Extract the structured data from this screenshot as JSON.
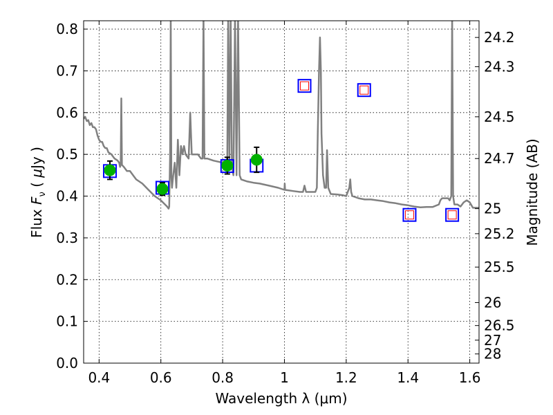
{
  "chart_data": {
    "type": "scatter",
    "xlabel": "Wavelength  λ (μm)",
    "ylabel": "Flux  F_ν  ( μJy )",
    "ylabel_right": "Magnitude (AB)",
    "xlim": [
      0.35,
      1.63
    ],
    "ylim": [
      0.0,
      0.82
    ],
    "grid": true,
    "x_ticks": [
      0.4,
      0.6,
      0.8,
      1.0,
      1.2,
      1.4,
      1.6
    ],
    "x_tick_labels": [
      "0.4",
      "0.6",
      "0.8",
      "1",
      "1.2",
      "1.4",
      "1.6"
    ],
    "y_ticks": [
      0.0,
      0.1,
      0.2,
      0.3,
      0.4,
      0.5,
      0.6,
      0.7,
      0.8
    ],
    "y_tick_labels": [
      "0.0",
      "0.1",
      "0.2",
      "0.3",
      "0.4",
      "0.5",
      "0.6",
      "0.7",
      "0.8"
    ],
    "mag_ticks": [
      {
        "label": "24.2",
        "flux": 0.78
      },
      {
        "label": "24.3",
        "flux": 0.71
      },
      {
        "label": "24.5",
        "flux": 0.59
      },
      {
        "label": "24.7",
        "flux": 0.49
      },
      {
        "label": "25",
        "flux": 0.37
      },
      {
        "label": "25.2",
        "flux": 0.31
      },
      {
        "label": "25.5",
        "flux": 0.23
      },
      {
        "label": "26",
        "flux": 0.145
      },
      {
        "label": "26.5",
        "flux": 0.09
      },
      {
        "label": "27",
        "flux": 0.055
      },
      {
        "label": "28",
        "flux": 0.022
      }
    ],
    "series": [
      {
        "kind": "model-spectrum",
        "color": "#808080",
        "points": [
          [
            0.35,
            0.585
          ],
          [
            0.355,
            0.59
          ],
          [
            0.36,
            0.58
          ],
          [
            0.365,
            0.582
          ],
          [
            0.37,
            0.57
          ],
          [
            0.375,
            0.575
          ],
          [
            0.38,
            0.565
          ],
          [
            0.385,
            0.565
          ],
          [
            0.39,
            0.56
          ],
          [
            0.395,
            0.545
          ],
          [
            0.4,
            0.535
          ],
          [
            0.405,
            0.53
          ],
          [
            0.41,
            0.53
          ],
          [
            0.415,
            0.52
          ],
          [
            0.42,
            0.515
          ],
          [
            0.425,
            0.515
          ],
          [
            0.43,
            0.505
          ],
          [
            0.44,
            0.5
          ],
          [
            0.45,
            0.49
          ],
          [
            0.46,
            0.485
          ],
          [
            0.465,
            0.48
          ],
          [
            0.468,
            0.47
          ],
          [
            0.47,
            0.475
          ],
          [
            0.472,
            0.634
          ],
          [
            0.474,
            0.475
          ],
          [
            0.48,
            0.47
          ],
          [
            0.49,
            0.46
          ],
          [
            0.5,
            0.46
          ],
          [
            0.51,
            0.45
          ],
          [
            0.52,
            0.44
          ],
          [
            0.54,
            0.43
          ],
          [
            0.56,
            0.415
          ],
          [
            0.58,
            0.4
          ],
          [
            0.6,
            0.39
          ],
          [
            0.62,
            0.375
          ],
          [
            0.625,
            0.37
          ],
          [
            0.627,
            0.375
          ],
          [
            0.63,
            0.5
          ],
          [
            0.632,
            0.83
          ],
          [
            0.634,
            0.45
          ],
          [
            0.636,
            0.42
          ],
          [
            0.64,
            0.45
          ],
          [
            0.645,
            0.48
          ],
          [
            0.65,
            0.42
          ],
          [
            0.655,
            0.535
          ],
          [
            0.66,
            0.45
          ],
          [
            0.665,
            0.52
          ],
          [
            0.67,
            0.5
          ],
          [
            0.675,
            0.52
          ],
          [
            0.68,
            0.5
          ],
          [
            0.69,
            0.49
          ],
          [
            0.695,
            0.6
          ],
          [
            0.7,
            0.5
          ],
          [
            0.71,
            0.5
          ],
          [
            0.72,
            0.5
          ],
          [
            0.73,
            0.49
          ],
          [
            0.735,
            0.49
          ],
          [
            0.738,
            0.83
          ],
          [
            0.741,
            0.49
          ],
          [
            0.75,
            0.49
          ],
          [
            0.77,
            0.485
          ],
          [
            0.8,
            0.48
          ],
          [
            0.81,
            0.48
          ],
          [
            0.815,
            0.49
          ],
          [
            0.818,
            0.83
          ],
          [
            0.822,
            0.49
          ],
          [
            0.826,
            0.83
          ],
          [
            0.83,
            0.47
          ],
          [
            0.835,
            0.45
          ],
          [
            0.84,
            0.83
          ],
          [
            0.845,
            0.45
          ],
          [
            0.85,
            0.83
          ],
          [
            0.855,
            0.45
          ],
          [
            0.86,
            0.44
          ],
          [
            0.88,
            0.435
          ],
          [
            0.9,
            0.432
          ],
          [
            0.92,
            0.43
          ],
          [
            0.95,
            0.425
          ],
          [
            0.98,
            0.42
          ],
          [
            1.0,
            0.415
          ],
          [
            1.001,
            0.43
          ],
          [
            1.002,
            0.415
          ],
          [
            1.03,
            0.412
          ],
          [
            1.05,
            0.41
          ],
          [
            1.06,
            0.41
          ],
          [
            1.065,
            0.425
          ],
          [
            1.07,
            0.41
          ],
          [
            1.08,
            0.41
          ],
          [
            1.1,
            0.41
          ],
          [
            1.105,
            0.42
          ],
          [
            1.108,
            0.55
          ],
          [
            1.112,
            0.7
          ],
          [
            1.115,
            0.78
          ],
          [
            1.118,
            0.7
          ],
          [
            1.12,
            0.55
          ],
          [
            1.125,
            0.45
          ],
          [
            1.13,
            0.42
          ],
          [
            1.135,
            0.42
          ],
          [
            1.138,
            0.51
          ],
          [
            1.142,
            0.42
          ],
          [
            1.15,
            0.405
          ],
          [
            1.17,
            0.404
          ],
          [
            1.19,
            0.402
          ],
          [
            1.2,
            0.4
          ],
          [
            1.21,
            0.42
          ],
          [
            1.213,
            0.44
          ],
          [
            1.216,
            0.41
          ],
          [
            1.22,
            0.4
          ],
          [
            1.24,
            0.395
          ],
          [
            1.26,
            0.392
          ],
          [
            1.28,
            0.392
          ],
          [
            1.3,
            0.39
          ],
          [
            1.32,
            0.388
          ],
          [
            1.34,
            0.385
          ],
          [
            1.36,
            0.383
          ],
          [
            1.38,
            0.38
          ],
          [
            1.4,
            0.378
          ],
          [
            1.42,
            0.375
          ],
          [
            1.44,
            0.373
          ],
          [
            1.46,
            0.374
          ],
          [
            1.48,
            0.374
          ],
          [
            1.5,
            0.38
          ],
          [
            1.505,
            0.39
          ],
          [
            1.51,
            0.395
          ],
          [
            1.52,
            0.395
          ],
          [
            1.53,
            0.395
          ],
          [
            1.535,
            0.39
          ],
          [
            1.54,
            0.4
          ],
          [
            1.543,
            0.83
          ],
          [
            1.546,
            0.4
          ],
          [
            1.55,
            0.38
          ],
          [
            1.56,
            0.38
          ],
          [
            1.57,
            0.375
          ],
          [
            1.58,
            0.385
          ],
          [
            1.59,
            0.39
          ],
          [
            1.6,
            0.385
          ],
          [
            1.61,
            0.372
          ],
          [
            1.62,
            0.372
          ],
          [
            1.63,
            0.372
          ]
        ]
      },
      {
        "kind": "model-photometry-boxes",
        "color": "#0000ff",
        "points": [
          [
            0.435,
            0.46
          ],
          [
            0.605,
            0.42
          ],
          [
            0.815,
            0.472
          ],
          [
            0.91,
            0.473
          ],
          [
            1.065,
            0.664
          ],
          [
            1.258,
            0.654
          ],
          [
            1.405,
            0.355
          ],
          [
            1.543,
            0.355
          ]
        ]
      },
      {
        "kind": "upper-limit-markers",
        "color": "#ff0000",
        "points": [
          [
            1.065,
            0.664
          ],
          [
            1.258,
            0.654
          ],
          [
            1.405,
            0.355
          ],
          [
            1.543,
            0.355
          ]
        ]
      },
      {
        "kind": "observed-photometry",
        "color": "#00b000",
        "points": [
          {
            "x": 0.435,
            "y": 0.462,
            "err": 0.022
          },
          {
            "x": 0.605,
            "y": 0.417,
            "err": 0.015
          },
          {
            "x": 0.815,
            "y": 0.473,
            "err": 0.02
          },
          {
            "x": 0.91,
            "y": 0.487,
            "err": 0.03
          }
        ]
      }
    ]
  }
}
